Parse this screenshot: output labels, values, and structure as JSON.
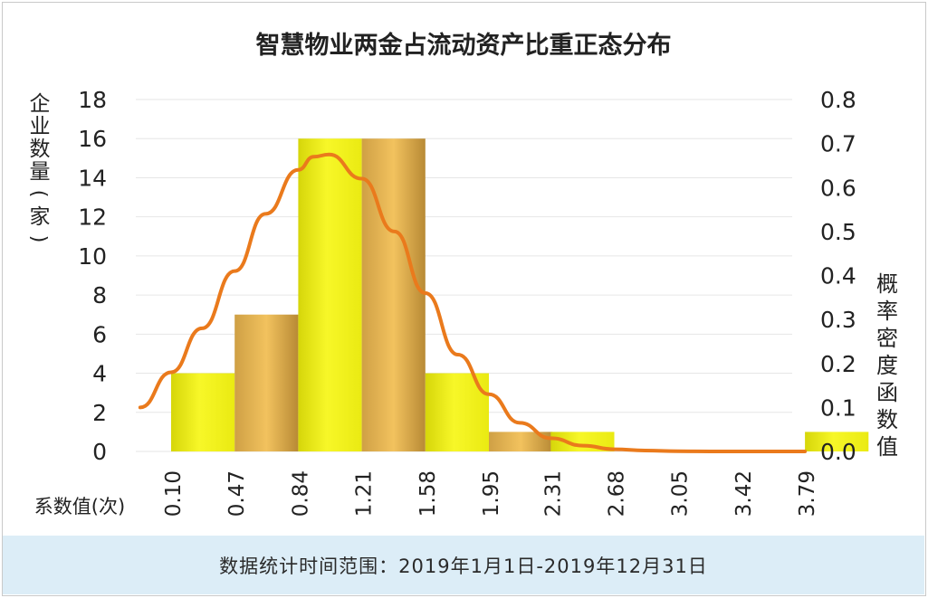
{
  "chart_data": {
    "type": "bar",
    "title": "智慧物业两金占流动资产比重正态分布",
    "xlabel": "系数值(次)",
    "ylabel": "企业数量(家)",
    "y2label": "概率密度函数值",
    "categories": [
      "0.10",
      "0.47",
      "0.84",
      "1.21",
      "1.58",
      "1.95",
      "2.31",
      "2.68",
      "3.05",
      "3.42",
      "3.79"
    ],
    "bars": [
      {
        "x_start": 0.1,
        "x_end": 0.47,
        "value": 4
      },
      {
        "x_start": 0.47,
        "x_end": 0.84,
        "value": 7
      },
      {
        "x_start": 0.84,
        "x_end": 1.21,
        "value": 16
      },
      {
        "x_start": 1.21,
        "x_end": 1.58,
        "value": 16
      },
      {
        "x_start": 1.58,
        "x_end": 1.95,
        "value": 4
      },
      {
        "x_start": 1.95,
        "x_end": 2.31,
        "value": 1
      },
      {
        "x_start": 2.31,
        "x_end": 2.68,
        "value": 1
      },
      {
        "x_start": 2.68,
        "x_end": 3.05,
        "value": 0
      },
      {
        "x_start": 3.05,
        "x_end": 3.42,
        "value": 0
      },
      {
        "x_start": 3.42,
        "x_end": 3.79,
        "value": 0
      },
      {
        "x_start": 3.79,
        "x_end": 4.16,
        "value": 1
      }
    ],
    "y_ticks": [
      "0",
      "2",
      "4",
      "6",
      "8",
      "10",
      "12",
      "14",
      "16",
      "18"
    ],
    "y2_ticks": [
      "0.0",
      "0.1",
      "0.2",
      "0.3",
      "0.4",
      "0.5",
      "0.6",
      "0.7",
      "0.8"
    ],
    "ylim": [
      0,
      18
    ],
    "y2lim": [
      0,
      0.8
    ],
    "curve": {
      "x": [
        -0.08,
        0.1,
        0.28,
        0.47,
        0.65,
        0.84,
        0.93,
        1.02,
        1.21,
        1.4,
        1.58,
        1.77,
        1.95,
        2.13,
        2.31,
        2.5,
        2.68,
        2.86,
        3.05,
        3.24,
        3.42,
        3.6,
        3.79
      ],
      "y": [
        0.1,
        0.18,
        0.28,
        0.41,
        0.54,
        0.64,
        0.67,
        0.675,
        0.62,
        0.5,
        0.36,
        0.22,
        0.13,
        0.065,
        0.03,
        0.013,
        0.005,
        0.002,
        0.0005,
        0.0001,
        0,
        0,
        0
      ]
    },
    "colors": {
      "bar_light": "#f2f21e",
      "bar_dark": "#d4a64c",
      "curve": "#ea7a1c",
      "grid": "#e6e6e6"
    },
    "grid": true
  },
  "footer": {
    "text": "数据统计时间范围：2019年1月1日-2019年12月31日"
  }
}
